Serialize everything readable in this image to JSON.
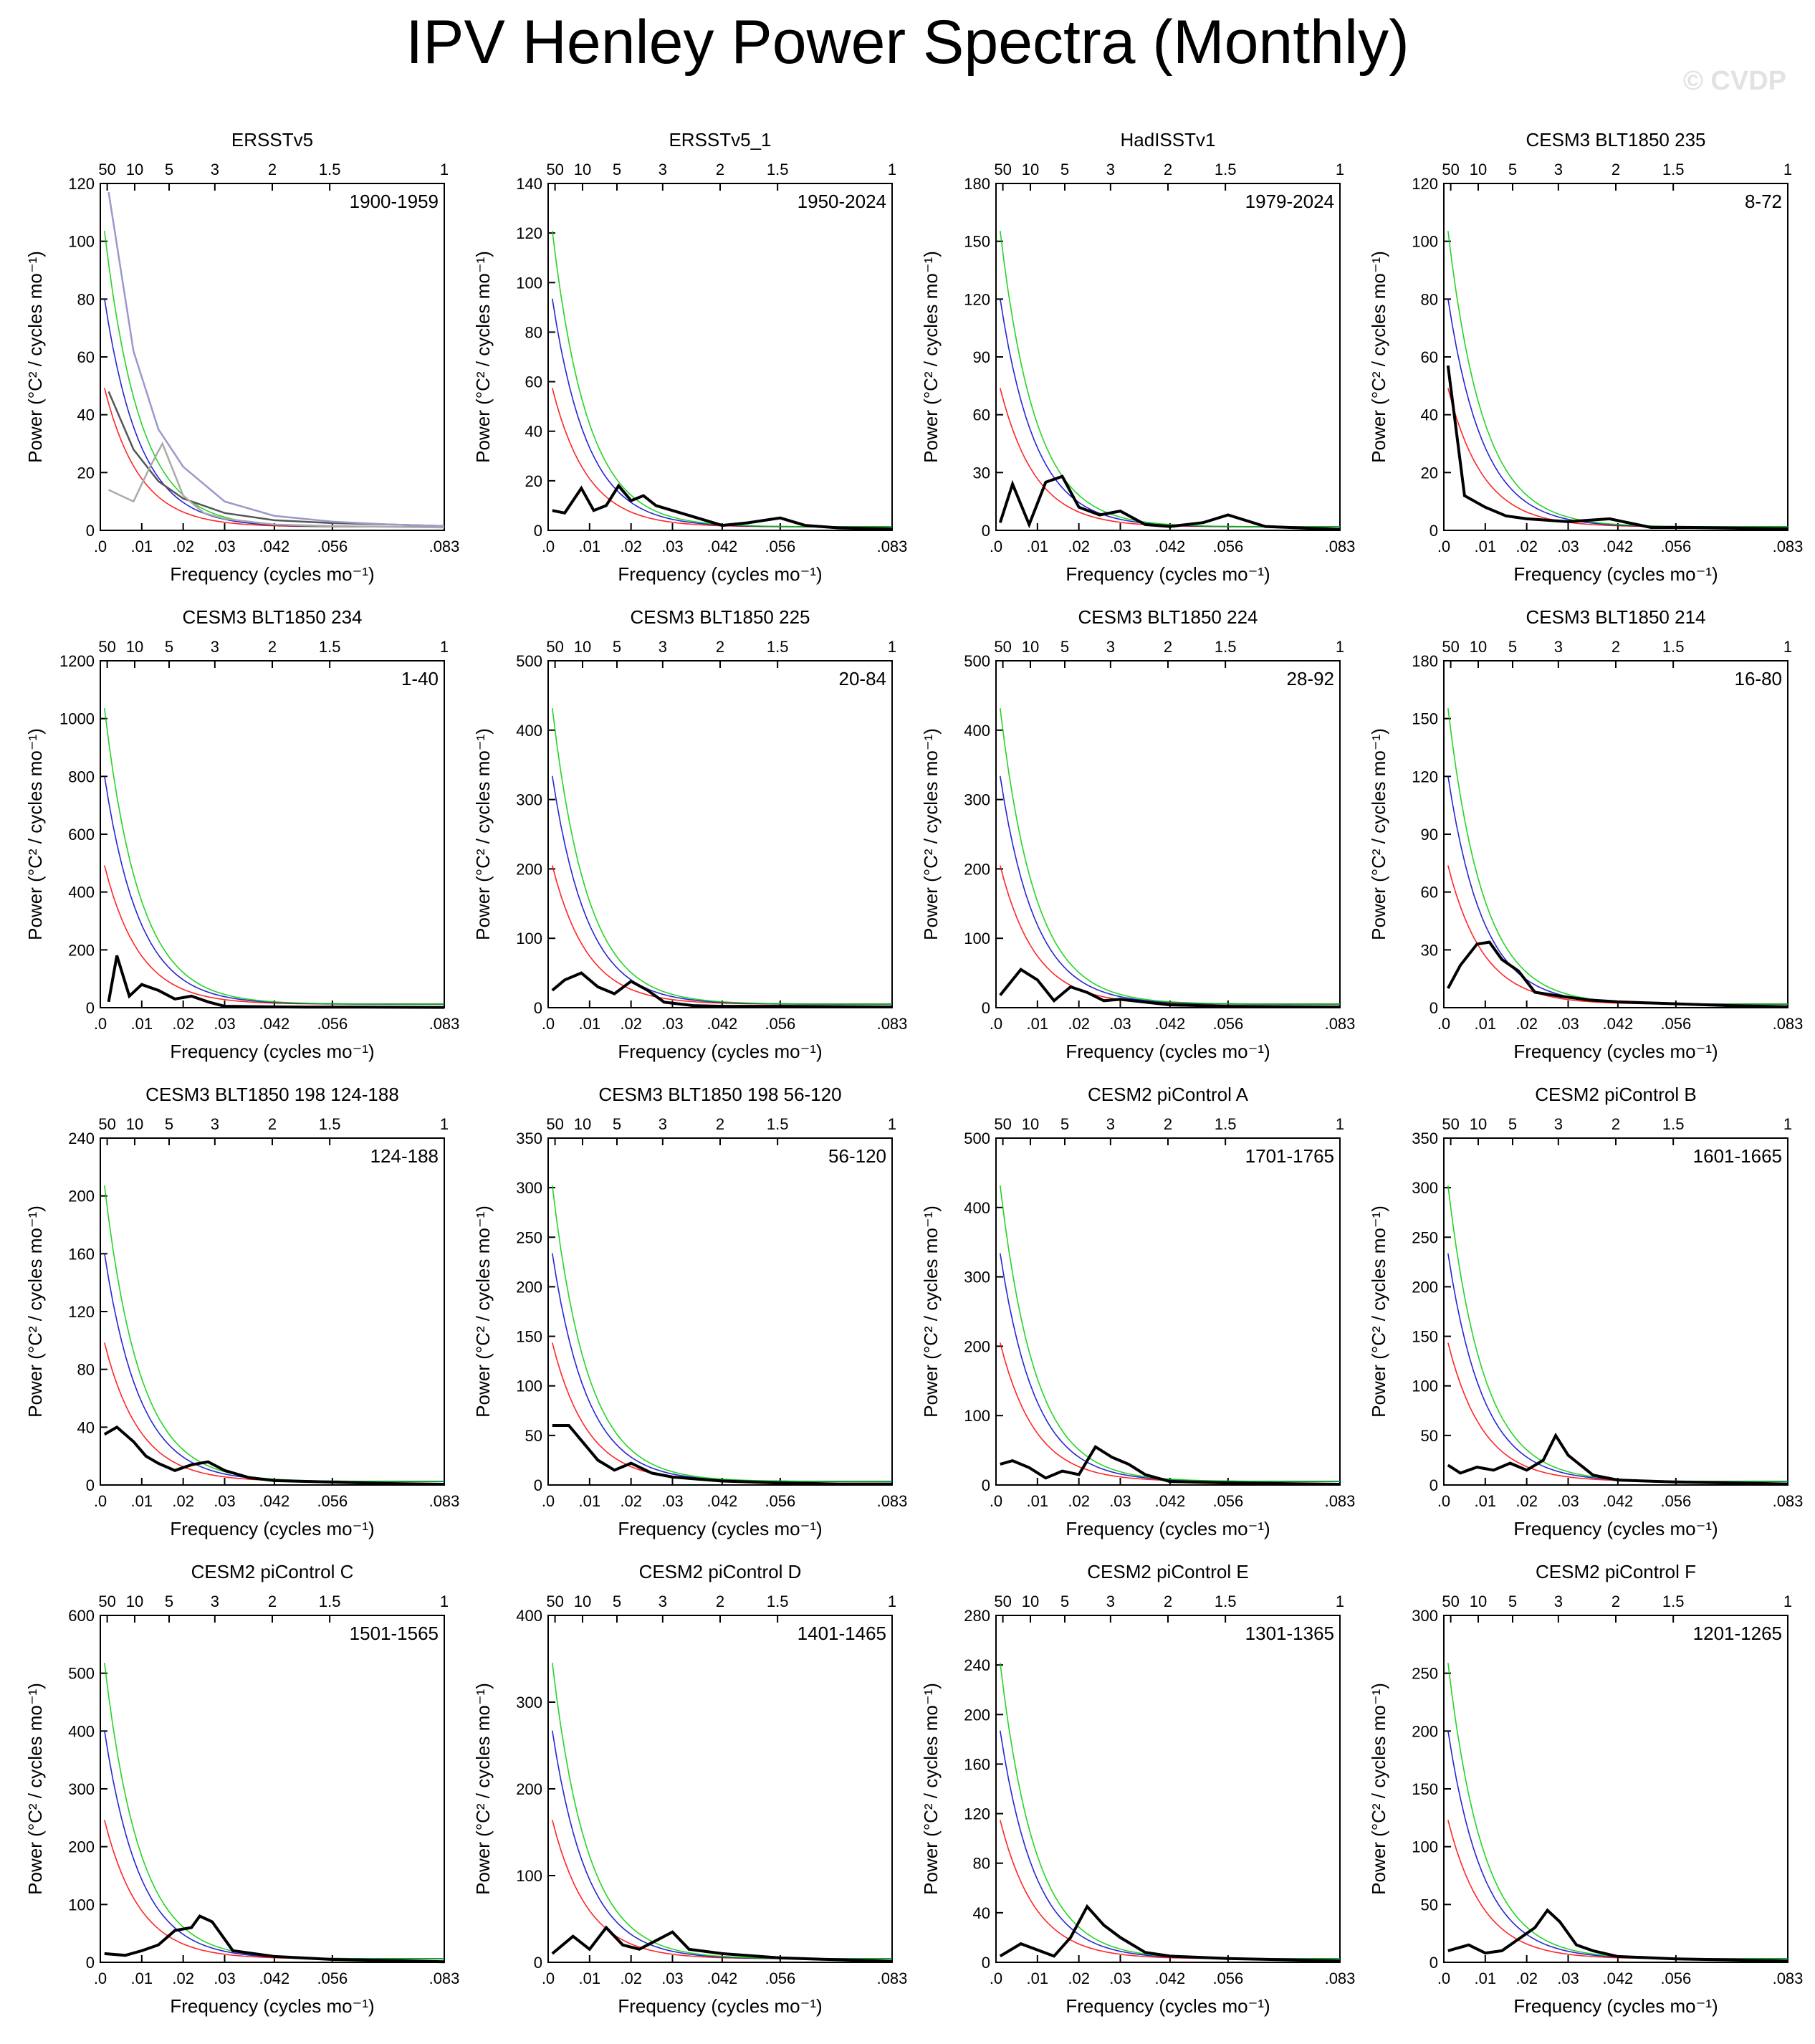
{
  "title": "IPV Henley Power Spectra (Monthly)",
  "watermark": "© CVDP",
  "chart_data": [
    {
      "type": "line",
      "title": "ERSSTv5",
      "period": "1900-1959",
      "ylim": [
        0,
        120
      ],
      "yticks": [
        0,
        20,
        40,
        60,
        80,
        100,
        120
      ],
      "xlabel": "Frequency (cycles mo⁻¹)",
      "ylabel": "Power (°C² / cycles mo⁻¹)",
      "series": [
        {
          "role": "red-noise",
          "color": "#555555",
          "x": [
            0.002,
            0.008,
            0.014,
            0.02,
            0.03,
            0.042,
            0.056,
            0.07,
            0.083
          ],
          "y": [
            48,
            28,
            17,
            11,
            6,
            3.5,
            2.5,
            2,
            1.5
          ]
        },
        {
          "role": "95%",
          "color": "#9999cc",
          "x": [
            0.002,
            0.008,
            0.014,
            0.02,
            0.03,
            0.042,
            0.056,
            0.07,
            0.083
          ],
          "y": [
            117,
            62,
            35,
            22,
            10,
            5,
            3,
            2,
            1.5
          ]
        },
        {
          "role": "99%",
          "color": "#aaaaaa",
          "x": [
            0.002,
            0.008,
            0.012,
            0.015,
            0.02,
            0.025,
            0.03,
            0.042,
            0.056,
            0.083
          ],
          "y": [
            14,
            10,
            22,
            30,
            12,
            6,
            4,
            2,
            1.5,
            1
          ]
        }
      ]
    },
    {
      "type": "line",
      "title": "ERSSTv5_1",
      "period": "1950-2024",
      "ylim": [
        0,
        140
      ],
      "yticks": [
        0,
        20,
        40,
        60,
        80,
        100,
        120,
        140
      ],
      "series": [
        {
          "role": "spectrum",
          "color": "#000000",
          "x": [
            0.001,
            0.004,
            0.008,
            0.011,
            0.014,
            0.017,
            0.02,
            0.023,
            0.026,
            0.03,
            0.036,
            0.042,
            0.048,
            0.056,
            0.062,
            0.07,
            0.083
          ],
          "y": [
            8,
            7,
            17,
            8,
            10,
            18,
            12,
            14,
            10,
            8,
            5,
            2,
            3,
            5,
            2,
            1,
            0.5
          ]
        }
      ]
    },
    {
      "type": "line",
      "title": "HadISSTv1",
      "period": "1979-2024",
      "ylim": [
        0,
        180
      ],
      "yticks": [
        0,
        30,
        60,
        90,
        120,
        150,
        180
      ],
      "series": [
        {
          "role": "spectrum",
          "color": "#000000",
          "x": [
            0.001,
            0.004,
            0.008,
            0.012,
            0.016,
            0.02,
            0.025,
            0.03,
            0.036,
            0.042,
            0.05,
            0.056,
            0.065,
            0.083
          ],
          "y": [
            4,
            24,
            3,
            25,
            28,
            12,
            8,
            10,
            3,
            2,
            4,
            8,
            2,
            0.5
          ]
        }
      ]
    },
    {
      "type": "line",
      "title": "CESM3 BLT1850 235",
      "period": "8-72",
      "ylim": [
        0,
        120
      ],
      "yticks": [
        0,
        20,
        40,
        60,
        80,
        100,
        120
      ],
      "series": [
        {
          "role": "spectrum",
          "color": "#000000",
          "x": [
            0.001,
            0.005,
            0.01,
            0.015,
            0.02,
            0.03,
            0.04,
            0.05,
            0.06,
            0.083
          ],
          "y": [
            57,
            12,
            8,
            5,
            4,
            3,
            4,
            1,
            1,
            0.5
          ]
        }
      ]
    },
    {
      "type": "line",
      "title": "CESM3 BLT1850 234",
      "period": "1-40",
      "ylim": [
        0,
        1200
      ],
      "yticks": [
        0,
        200,
        400,
        600,
        800,
        1000,
        1200
      ],
      "series": [
        {
          "role": "spectrum",
          "color": "#000000",
          "x": [
            0.002,
            0.004,
            0.007,
            0.01,
            0.014,
            0.018,
            0.022,
            0.026,
            0.03,
            0.04,
            0.05,
            0.06,
            0.083
          ],
          "y": [
            20,
            180,
            40,
            80,
            60,
            30,
            40,
            20,
            5,
            3,
            2,
            2,
            1
          ]
        }
      ]
    },
    {
      "type": "line",
      "title": "CESM3 BLT1850 225",
      "period": "20-84",
      "ylim": [
        0,
        500
      ],
      "yticks": [
        0,
        100,
        200,
        300,
        400,
        500
      ],
      "series": [
        {
          "role": "spectrum",
          "color": "#000000",
          "x": [
            0.001,
            0.004,
            0.008,
            0.012,
            0.016,
            0.02,
            0.024,
            0.028,
            0.035,
            0.042,
            0.056,
            0.083
          ],
          "y": [
            25,
            40,
            50,
            30,
            20,
            38,
            25,
            8,
            3,
            2,
            2,
            1
          ]
        }
      ]
    },
    {
      "type": "line",
      "title": "CESM3 BLT1850 224",
      "period": "28-92",
      "ylim": [
        0,
        500
      ],
      "yticks": [
        0,
        100,
        200,
        300,
        400,
        500
      ],
      "series": [
        {
          "role": "spectrum",
          "color": "#000000",
          "x": [
            0.001,
            0.006,
            0.01,
            0.014,
            0.018,
            0.022,
            0.026,
            0.03,
            0.042,
            0.056,
            0.083
          ],
          "y": [
            18,
            55,
            40,
            10,
            30,
            22,
            10,
            12,
            4,
            2,
            1
          ]
        }
      ]
    },
    {
      "type": "line",
      "title": "CESM3 BLT1850 214",
      "period": "16-80",
      "ylim": [
        0,
        180
      ],
      "yticks": [
        0,
        30,
        60,
        90,
        120,
        150,
        180
      ],
      "series": [
        {
          "role": "spectrum",
          "color": "#000000",
          "x": [
            0.001,
            0.004,
            0.008,
            0.011,
            0.014,
            0.018,
            0.022,
            0.028,
            0.035,
            0.042,
            0.056,
            0.07,
            0.083
          ],
          "y": [
            10,
            22,
            33,
            34,
            25,
            19,
            8,
            6,
            4,
            3,
            2,
            1,
            0.5
          ]
        }
      ]
    },
    {
      "type": "line",
      "title": "CESM3 BLT1850 198 124-188",
      "period": "124-188",
      "ylim": [
        0,
        240
      ],
      "yticks": [
        0,
        40,
        80,
        120,
        160,
        200,
        240
      ],
      "series": [
        {
          "role": "spectrum",
          "color": "#000000",
          "x": [
            0.001,
            0.004,
            0.008,
            0.011,
            0.014,
            0.018,
            0.022,
            0.026,
            0.03,
            0.036,
            0.042,
            0.056,
            0.07,
            0.083
          ],
          "y": [
            35,
            40,
            30,
            20,
            15,
            10,
            14,
            16,
            10,
            5,
            3,
            2,
            1,
            0.5
          ]
        }
      ]
    },
    {
      "type": "line",
      "title": "CESM3 BLT1850 198 56-120",
      "period": "56-120",
      "ylim": [
        0,
        350
      ],
      "yticks": [
        0,
        50,
        100,
        150,
        200,
        250,
        300,
        350
      ],
      "series": [
        {
          "role": "spectrum",
          "color": "#000000",
          "x": [
            0.001,
            0.005,
            0.008,
            0.012,
            0.016,
            0.02,
            0.025,
            0.03,
            0.036,
            0.042,
            0.056,
            0.07,
            0.083
          ],
          "y": [
            60,
            60,
            45,
            25,
            15,
            22,
            12,
            8,
            6,
            4,
            2,
            1,
            1
          ]
        }
      ]
    },
    {
      "type": "line",
      "title": "CESM2 piControl A",
      "period": "1701-1765",
      "ylim": [
        0,
        500
      ],
      "yticks": [
        0,
        100,
        200,
        300,
        400,
        500
      ],
      "series": [
        {
          "role": "spectrum",
          "color": "#000000",
          "x": [
            0.001,
            0.004,
            0.008,
            0.012,
            0.016,
            0.02,
            0.024,
            0.028,
            0.032,
            0.036,
            0.042,
            0.056,
            0.07,
            0.083
          ],
          "y": [
            30,
            35,
            25,
            10,
            20,
            15,
            55,
            40,
            30,
            15,
            5,
            3,
            2,
            1
          ]
        }
      ]
    },
    {
      "type": "line",
      "title": "CESM2 piControl B",
      "period": "1601-1665",
      "ylim": [
        0,
        350
      ],
      "yticks": [
        0,
        50,
        100,
        150,
        200,
        250,
        300,
        350
      ],
      "series": [
        {
          "role": "spectrum",
          "color": "#000000",
          "x": [
            0.001,
            0.004,
            0.008,
            0.012,
            0.016,
            0.02,
            0.024,
            0.027,
            0.03,
            0.036,
            0.042,
            0.056,
            0.07,
            0.083
          ],
          "y": [
            20,
            12,
            18,
            15,
            22,
            15,
            25,
            50,
            30,
            10,
            5,
            3,
            2,
            1
          ]
        }
      ]
    },
    {
      "type": "line",
      "title": "CESM2 piControl C",
      "period": "1501-1565",
      "ylim": [
        0,
        600
      ],
      "yticks": [
        0,
        100,
        200,
        300,
        400,
        500,
        600
      ],
      "series": [
        {
          "role": "spectrum",
          "color": "#000000",
          "x": [
            0.001,
            0.006,
            0.01,
            0.014,
            0.018,
            0.022,
            0.024,
            0.027,
            0.032,
            0.042,
            0.056,
            0.07,
            0.083
          ],
          "y": [
            15,
            12,
            20,
            30,
            55,
            60,
            80,
            70,
            20,
            10,
            5,
            3,
            1
          ]
        }
      ]
    },
    {
      "type": "line",
      "title": "CESM2 piControl D",
      "period": "1401-1465",
      "ylim": [
        0,
        400
      ],
      "yticks": [
        0,
        100,
        200,
        300,
        400
      ],
      "series": [
        {
          "role": "spectrum",
          "color": "#000000",
          "x": [
            0.001,
            0.006,
            0.01,
            0.014,
            0.018,
            0.022,
            0.026,
            0.03,
            0.034,
            0.042,
            0.056,
            0.07,
            0.083
          ],
          "y": [
            10,
            30,
            15,
            40,
            20,
            15,
            25,
            35,
            15,
            10,
            5,
            3,
            1
          ]
        }
      ]
    },
    {
      "type": "line",
      "title": "CESM2 piControl E",
      "period": "1301-1365",
      "ylim": [
        0,
        280
      ],
      "yticks": [
        0,
        40,
        80,
        120,
        160,
        200,
        240,
        280
      ],
      "series": [
        {
          "role": "spectrum",
          "color": "#000000",
          "x": [
            0.001,
            0.006,
            0.01,
            0.014,
            0.018,
            0.022,
            0.026,
            0.03,
            0.036,
            0.042,
            0.056,
            0.07,
            0.083
          ],
          "y": [
            5,
            15,
            10,
            5,
            20,
            45,
            30,
            20,
            8,
            5,
            3,
            2,
            1
          ]
        }
      ]
    },
    {
      "type": "line",
      "title": "CESM2 piControl F",
      "period": "1201-1265",
      "ylim": [
        0,
        300
      ],
      "yticks": [
        0,
        50,
        100,
        150,
        200,
        250,
        300
      ],
      "series": [
        {
          "role": "spectrum",
          "color": "#000000",
          "x": [
            0.001,
            0.006,
            0.01,
            0.014,
            0.018,
            0.022,
            0.025,
            0.028,
            0.032,
            0.036,
            0.042,
            0.056,
            0.07,
            0.083
          ],
          "y": [
            10,
            15,
            8,
            10,
            20,
            30,
            45,
            35,
            15,
            10,
            5,
            3,
            2,
            1
          ]
        }
      ]
    }
  ],
  "axes": {
    "xticks_bottom": [
      ".0",
      ".01",
      ".02",
      ".03",
      ".042",
      ".056",
      ".083"
    ],
    "xticks_top": [
      "50",
      "10",
      "5",
      "3",
      "2",
      "1.5",
      "1"
    ],
    "xlabel": "Frequency (cycles mo⁻¹)",
    "ylabel": "Power (°C² / cycles mo⁻¹)"
  },
  "colors": {
    "spectrum": "#000000",
    "red_noise": "#ff0000",
    "ci95": "#0000cc",
    "ci99": "#00cc00"
  }
}
